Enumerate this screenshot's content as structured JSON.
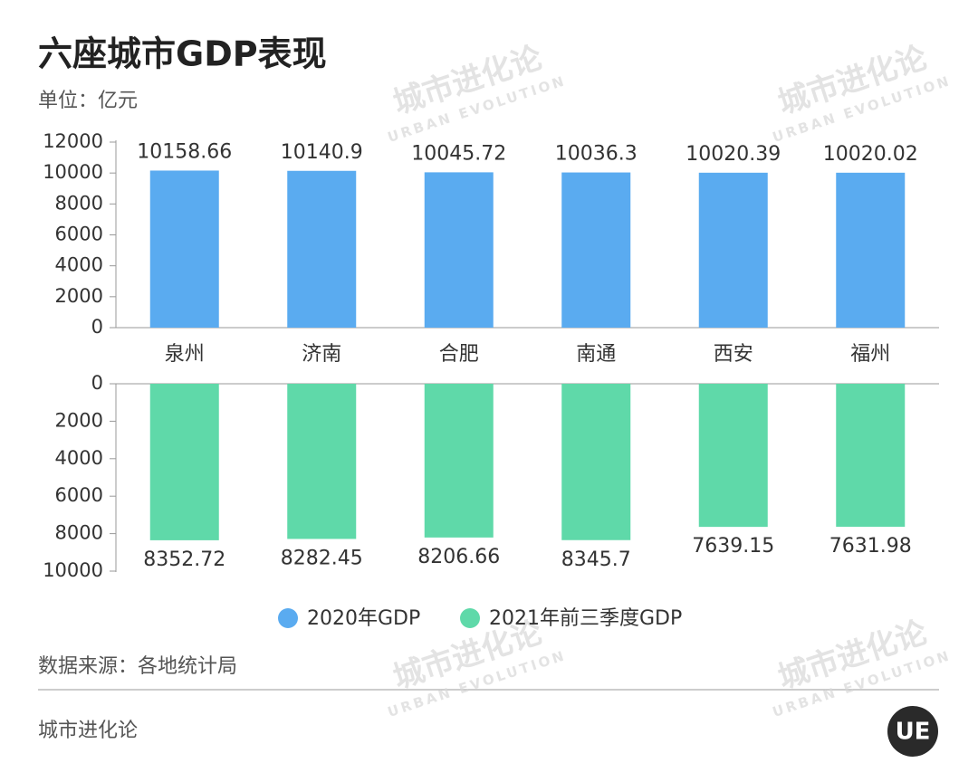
{
  "title": "六座城市GDP表现",
  "unit": "单位：亿元",
  "source": "数据来源：各地统计局",
  "brand": "城市进化论",
  "logo": "UE",
  "watermark": {
    "cn": "城市进化论",
    "en": "URBAN EVOLUTION"
  },
  "chart_data": [
    {
      "type": "bar",
      "categories": [
        "泉州",
        "济南",
        "合肥",
        "南通",
        "西安",
        "福州"
      ],
      "series": [
        {
          "name": "2020年GDP",
          "color": "#5aabf0",
          "values": [
            10158.66,
            10140.9,
            10045.72,
            10036.3,
            10020.39,
            10020.02
          ]
        }
      ],
      "ylim": [
        0,
        12000
      ],
      "yticks": [
        0,
        2000,
        4000,
        6000,
        8000,
        10000,
        12000
      ]
    },
    {
      "type": "bar",
      "y_inverted": true,
      "series": [
        {
          "name": "2021年前三季度GDP",
          "color": "#5fd9a9",
          "values": [
            8352.72,
            8282.45,
            8206.66,
            8345.7,
            7639.15,
            7631.98
          ]
        }
      ],
      "ylim": [
        0,
        10000
      ],
      "yticks": [
        0,
        2000,
        4000,
        6000,
        8000,
        10000
      ]
    }
  ]
}
